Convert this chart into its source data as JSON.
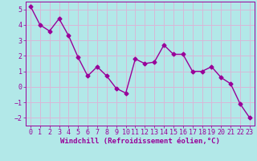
{
  "x": [
    0,
    1,
    2,
    3,
    4,
    5,
    6,
    7,
    8,
    9,
    10,
    11,
    12,
    13,
    14,
    15,
    16,
    17,
    18,
    19,
    20,
    21,
    22,
    23
  ],
  "y": [
    5.2,
    4.0,
    3.6,
    4.4,
    3.3,
    1.9,
    0.7,
    1.3,
    0.7,
    -0.1,
    -0.4,
    1.8,
    1.5,
    1.6,
    2.7,
    2.1,
    2.1,
    1.0,
    1.0,
    1.3,
    0.6,
    0.2,
    -1.1,
    -2.0
  ],
  "line_color": "#990099",
  "marker": "D",
  "marker_size": 2.5,
  "bg_color": "#b2e8e8",
  "grid_color": "#d8b8d8",
  "xlabel": "Windchill (Refroidissement éolien,°C)",
  "ylim": [
    -2.5,
    5.5
  ],
  "xlim": [
    -0.5,
    23.5
  ],
  "yticks": [
    -2,
    -1,
    0,
    1,
    2,
    3,
    4,
    5
  ],
  "xticks": [
    0,
    1,
    2,
    3,
    4,
    5,
    6,
    7,
    8,
    9,
    10,
    11,
    12,
    13,
    14,
    15,
    16,
    17,
    18,
    19,
    20,
    21,
    22,
    23
  ],
  "tick_color": "#990099",
  "label_color": "#990099",
  "label_fontsize": 6.5,
  "tick_fontsize": 6,
  "line_width": 1.0
}
